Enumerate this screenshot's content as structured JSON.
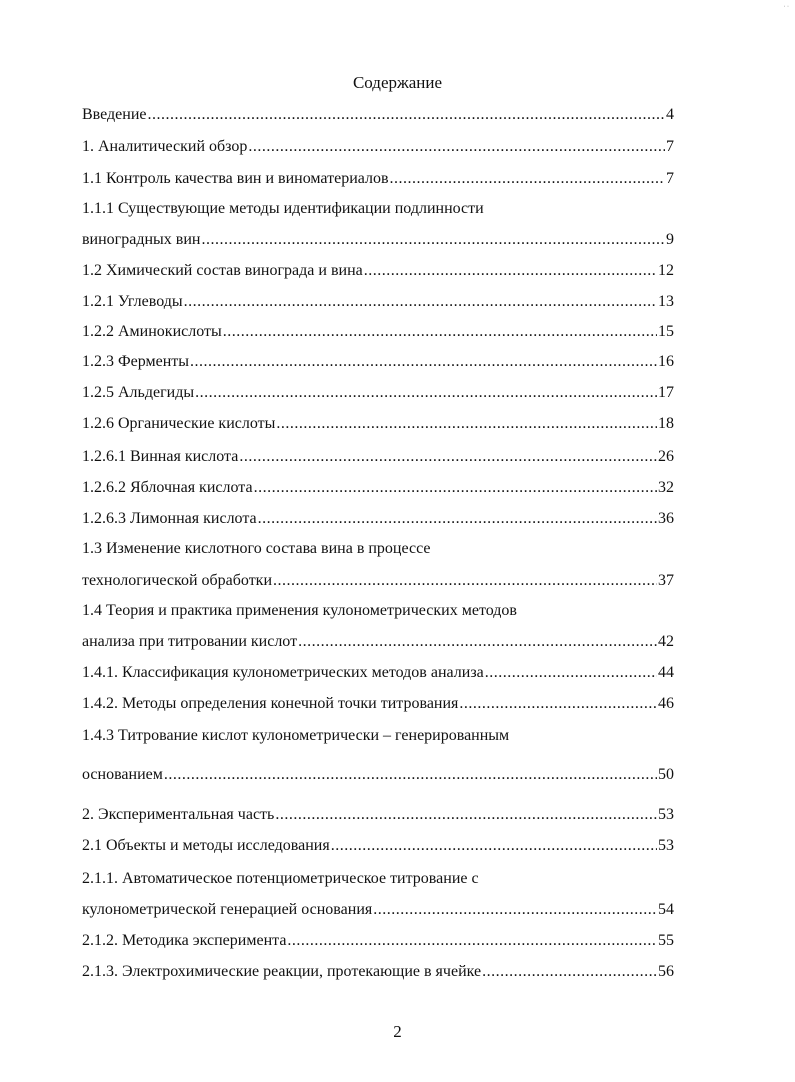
{
  "title": "Содержание",
  "entries": [
    {
      "text": "Введение",
      "page": "4"
    },
    {
      "text": "1. Аналитический обзор",
      "page": "7"
    },
    {
      "text": "1.1 Контроль качества вин и виноматериалов",
      "page": "7"
    },
    {
      "text": "1.1.1 Существующие методы идентификации подлинности",
      "text2": "виноградных вин",
      "page": "9"
    },
    {
      "text": "1.2 Химический состав винограда и вина",
      "page": "12"
    },
    {
      "text": "1.2.1 Углеводы",
      "page": "13"
    },
    {
      "text": "1.2.2 Аминокислоты",
      "page": "15"
    },
    {
      "text": "1.2.3 Ферменты",
      "page": "16"
    },
    {
      "text": "1.2.5 Альдегиды",
      "page": "17"
    },
    {
      "text": "1.2.6 Органические кислоты",
      "page": "18"
    },
    {
      "text": "1.2.6.1 Винная кислота",
      "page": "26"
    },
    {
      "text": "1.2.6.2 Яблочная кислота",
      "page": "32"
    },
    {
      "text": "1.2.6.3 Лимонная кислота",
      "page": "36"
    },
    {
      "text": "1.3 Изменение кислотного состава вина в процессе",
      "text2": "технологической обработки",
      "page": "37"
    },
    {
      "text": "1.4 Теория и практика применения кулонометрических методов",
      "text2": "анализа при титровании кислот",
      "page": "42"
    },
    {
      "text": "1.4.1. Классификация кулонометрических методов анализа",
      "page": "44"
    },
    {
      "text": "1.4.2. Методы определения конечной точки титрования",
      "page": "46"
    },
    {
      "text": "1.4.3 Титрование кислот кулонометрически – генерированным",
      "text2": "основанием",
      "page": "50"
    },
    {
      "text": "2. Экспериментальная часть",
      "page": "53"
    },
    {
      "text": "2.1 Объекты и методы исследования",
      "page": "53"
    },
    {
      "text": "2.1.1. Автоматическое потенциометрическое титрование с",
      "text2": "кулонометрической генерацией основания",
      "page": "54"
    },
    {
      "text": "2.1.2. Методика эксперимента",
      "page": "55"
    },
    {
      "text": "2.1.3. Электрохимические реакции, протекающие в ячейке",
      "page": "56"
    }
  ],
  "page_number": "2"
}
